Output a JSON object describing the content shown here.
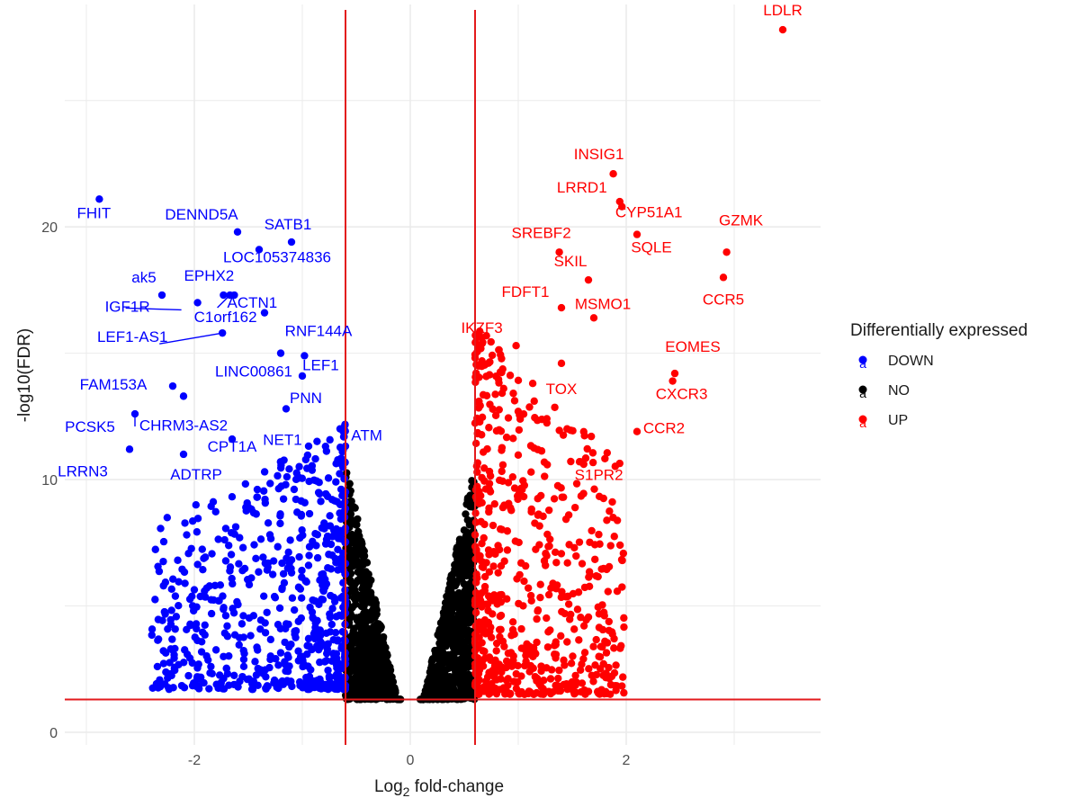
{
  "chart_data": {
    "type": "scatter",
    "title": "",
    "xlabel_main": "Log",
    "xlabel_sub": "2",
    "xlabel_rest": " fold-change",
    "ylabel": "-log10(FDR)",
    "xlim": [
      -3.2,
      3.8
    ],
    "ylim": [
      -0.5,
      28.8
    ],
    "x_ticks": [
      -2,
      0,
      2
    ],
    "x_tick_labels": [
      "-2",
      "0",
      "2"
    ],
    "y_ticks": [
      0,
      10,
      20
    ],
    "y_tick_labels": [
      "0",
      "10",
      "20"
    ],
    "thresholds": {
      "log2fc": [
        -0.6,
        0.6
      ],
      "neg_log10_fdr": 1.3
    },
    "grid": true,
    "colors": {
      "DOWN": "#0000ff",
      "NO": "#000000",
      "UP": "#ff0000",
      "threshold_line": "#e31a1c",
      "grid": "#ebebeb"
    },
    "legend": {
      "title": "Differentially expressed",
      "position": "right",
      "entries": [
        {
          "label": "DOWN",
          "color": "#0000ff"
        },
        {
          "label": "NO",
          "color": "#000000"
        },
        {
          "label": "UP",
          "color": "#ff0000"
        }
      ],
      "key_glyph": "a"
    },
    "labeled_points": [
      {
        "gene": "LDLR",
        "x": 3.45,
        "y": 27.8,
        "group": "UP"
      },
      {
        "gene": "INSIG1",
        "x": 1.88,
        "y": 22.1,
        "group": "UP"
      },
      {
        "gene": "LRRD1",
        "x": 1.94,
        "y": 21.0,
        "group": "UP"
      },
      {
        "gene": "CYP51A1",
        "x": 1.96,
        "y": 20.8,
        "group": "UP"
      },
      {
        "gene": "SQLE",
        "x": 2.1,
        "y": 19.7,
        "group": "UP"
      },
      {
        "gene": "GZMK",
        "x": 2.93,
        "y": 19.0,
        "group": "UP"
      },
      {
        "gene": "SREBF2",
        "x": 1.38,
        "y": 19.0,
        "group": "UP"
      },
      {
        "gene": "SKIL",
        "x": 1.65,
        "y": 17.9,
        "group": "UP"
      },
      {
        "gene": "CCR5",
        "x": 2.9,
        "y": 18.0,
        "group": "UP"
      },
      {
        "gene": "MSMO1",
        "x": 1.7,
        "y": 16.4,
        "group": "UP"
      },
      {
        "gene": "FDFT1",
        "x": 1.4,
        "y": 16.8,
        "group": "UP"
      },
      {
        "gene": "IKZF3",
        "x": 0.98,
        "y": 15.3,
        "group": "UP"
      },
      {
        "gene": "TOX",
        "x": 1.4,
        "y": 14.6,
        "group": "UP"
      },
      {
        "gene": "EOMES",
        "x": 2.45,
        "y": 14.2,
        "group": "UP"
      },
      {
        "gene": "CXCR3",
        "x": 2.43,
        "y": 13.9,
        "group": "UP"
      },
      {
        "gene": "CCR2",
        "x": 2.1,
        "y": 11.9,
        "group": "UP"
      },
      {
        "gene": "S1PR2",
        "x": 1.58,
        "y": 10.7,
        "group": "UP"
      },
      {
        "gene": "FHIT",
        "x": -2.88,
        "y": 21.1,
        "group": "DOWN"
      },
      {
        "gene": "DENND5A",
        "x": -1.6,
        "y": 19.8,
        "group": "DOWN"
      },
      {
        "gene": "SATB1",
        "x": -1.1,
        "y": 19.4,
        "group": "DOWN"
      },
      {
        "gene": "LOC105374836",
        "x": -1.4,
        "y": 19.1,
        "group": "DOWN"
      },
      {
        "gene": "ak5",
        "x": -2.3,
        "y": 17.3,
        "group": "DOWN"
      },
      {
        "gene": "EPHX2",
        "x": -1.73,
        "y": 17.3,
        "group": "DOWN"
      },
      {
        "gene": "ACTN1",
        "x": -1.63,
        "y": 17.3,
        "group": "DOWN"
      },
      {
        "gene": "IGF1R",
        "x": -1.97,
        "y": 17.0,
        "group": "DOWN"
      },
      {
        "gene": "C1orf162",
        "x": -1.67,
        "y": 17.3,
        "group": "DOWN"
      },
      {
        "gene": "RNF144A",
        "x": -1.35,
        "y": 16.6,
        "group": "DOWN"
      },
      {
        "gene": "LEF1-AS1",
        "x": -1.74,
        "y": 15.8,
        "group": "DOWN"
      },
      {
        "gene": "LINC00861",
        "x": -1.2,
        "y": 15.0,
        "group": "DOWN"
      },
      {
        "gene": "LEF1",
        "x": -0.98,
        "y": 14.9,
        "group": "DOWN"
      },
      {
        "gene": "FAM153A",
        "x": -2.2,
        "y": 13.7,
        "group": "DOWN"
      },
      {
        "gene": "PNN",
        "x": -1.0,
        "y": 14.1,
        "group": "DOWN"
      },
      {
        "gene": "NET1",
        "x": -1.15,
        "y": 12.8,
        "group": "DOWN"
      },
      {
        "gene": "CHRM3-AS2",
        "x": -2.1,
        "y": 13.3,
        "group": "DOWN"
      },
      {
        "gene": "PCSK5",
        "x": -2.55,
        "y": 12.6,
        "group": "DOWN"
      },
      {
        "gene": "CPT1A",
        "x": -1.65,
        "y": 11.6,
        "group": "DOWN"
      },
      {
        "gene": "LRRN3",
        "x": -2.6,
        "y": 11.2,
        "group": "DOWN"
      },
      {
        "gene": "ADTRP",
        "x": -2.1,
        "y": 11.0,
        "group": "DOWN"
      },
      {
        "gene": "ATM",
        "x": -0.62,
        "y": 11.9,
        "group": "DOWN"
      }
    ]
  }
}
